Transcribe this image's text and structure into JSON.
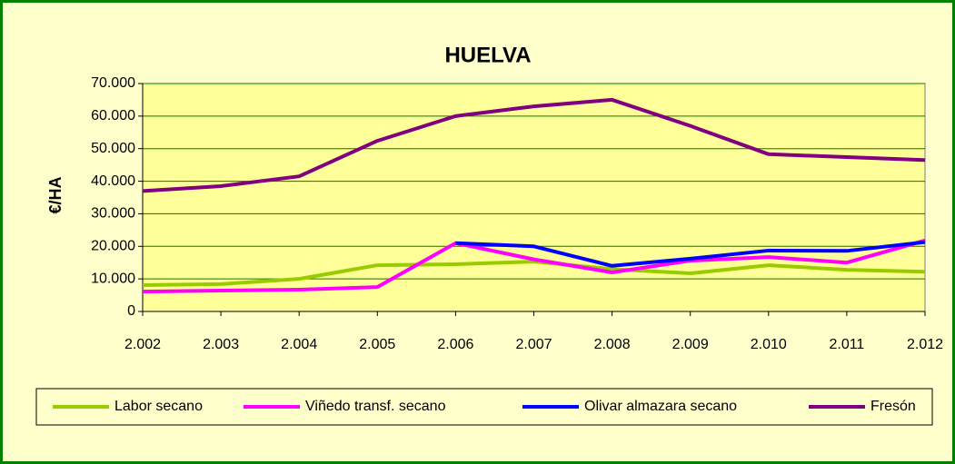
{
  "chart_data": {
    "type": "line",
    "title": "HUELVA",
    "y_label": "€/HA",
    "categories": [
      "2.002",
      "2.003",
      "2.004",
      "2.005",
      "2.006",
      "2.007",
      "2.008",
      "2.009",
      "2.010",
      "2.011",
      "2.012"
    ],
    "series": [
      {
        "name": "Labor secano",
        "color": "#99cc00",
        "values": [
          8100,
          8400,
          10000,
          14200,
          14500,
          15300,
          13000,
          11700,
          14200,
          12800,
          12200
        ]
      },
      {
        "name": "Viñedo transf. secano",
        "color": "#ff00ff",
        "values": [
          6100,
          6400,
          6700,
          7500,
          21000,
          16000,
          12000,
          15600,
          16700,
          15000,
          21800
        ]
      },
      {
        "name": "Olivar almazara secano",
        "color": "#0000ff",
        "values": [
          null,
          null,
          null,
          null,
          21000,
          20000,
          14000,
          16200,
          18700,
          18600,
          21300
        ]
      },
      {
        "name": "Fresón",
        "color": "#800080",
        "values": [
          37000,
          38500,
          41500,
          52400,
          60000,
          63000,
          65000,
          57000,
          48300,
          47400,
          46500
        ]
      }
    ],
    "ylim": [
      0,
      70000
    ],
    "yticks": [
      0,
      {
        "value": 10000,
        "label": "10.000"
      },
      {
        "value": 20000,
        "label": "20.000"
      },
      {
        "value": 30000,
        "label": "30.000"
      },
      {
        "value": 40000,
        "label": "40.000"
      },
      {
        "value": 50000,
        "label": "50.000"
      },
      {
        "value": 60000,
        "label": "60.000"
      },
      {
        "value": 70000,
        "label": "70.000"
      }
    ],
    "grid": true,
    "legend": "bottom"
  }
}
